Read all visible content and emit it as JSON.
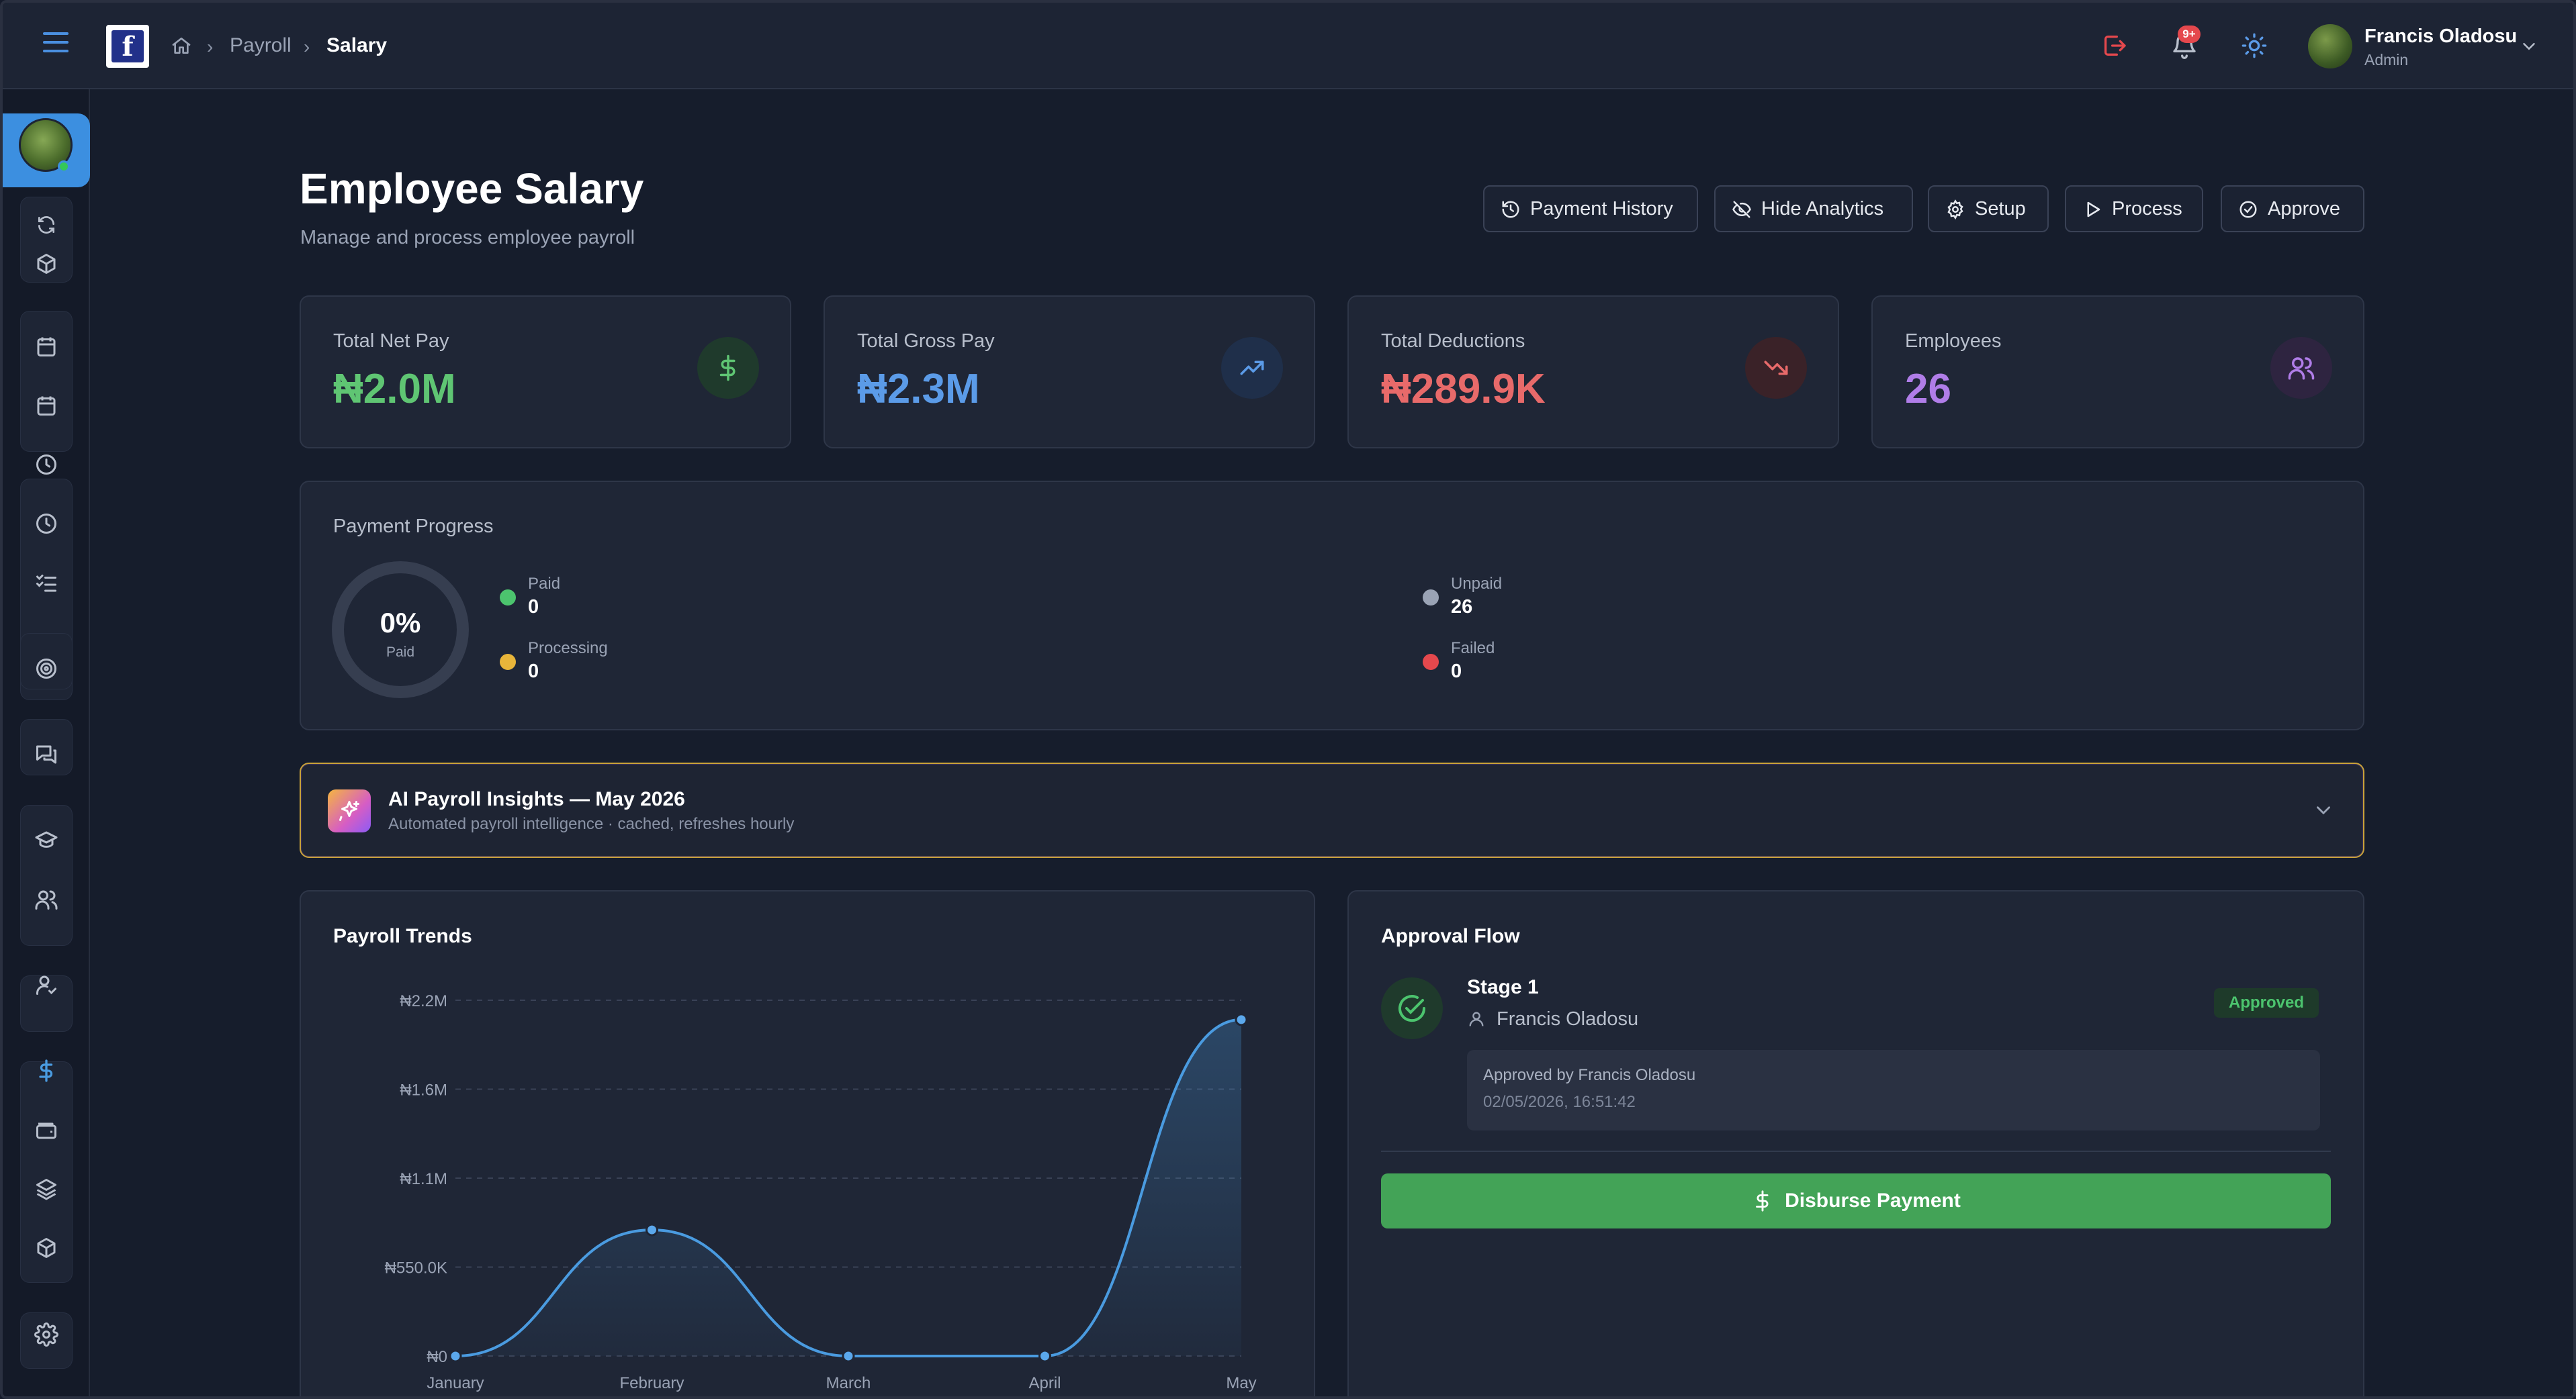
{
  "topbar": {
    "logo_letter": "f",
    "breadcrumb": [
      "Payroll",
      "Salary"
    ],
    "notification_badge": "9+",
    "user": {
      "name": "Francis Oladosu",
      "role": "Admin"
    }
  },
  "page": {
    "title": "Employee Salary",
    "subtitle": "Manage and process employee payroll"
  },
  "actions": {
    "payment_history": "Payment History",
    "hide_analytics": "Hide Analytics",
    "setup": "Setup",
    "process": "Process",
    "approve": "Approve"
  },
  "stats": [
    {
      "label": "Total Net Pay",
      "value": "₦2.0M",
      "color": "#5fc573",
      "icon": "dollar-icon"
    },
    {
      "label": "Total Gross Pay",
      "value": "₦2.3M",
      "color": "#5b9be8",
      "icon": "trending-up-icon"
    },
    {
      "label": "Total Deductions",
      "value": "₦289.9K",
      "color": "#e86a6a",
      "icon": "trending-down-icon"
    },
    {
      "label": "Employees",
      "value": "26",
      "color": "#b07de8",
      "icon": "users-icon"
    }
  ],
  "progress": {
    "title": "Payment Progress",
    "percent": "0%",
    "percent_label": "Paid",
    "legend": [
      {
        "name": "Paid",
        "value": "0",
        "color": "#4cc46e"
      },
      {
        "name": "Processing",
        "value": "0",
        "color": "#e8b53a"
      },
      {
        "name": "Unpaid",
        "value": "26",
        "color": "#9aa3b5"
      },
      {
        "name": "Failed",
        "value": "0",
        "color": "#e5484d"
      }
    ]
  },
  "ai": {
    "title": "AI Payroll Insights — May 2026",
    "subtitle": "Automated payroll intelligence · cached, refreshes hourly"
  },
  "chart_data": {
    "type": "area",
    "title": "Payroll Trends",
    "categories": [
      "January",
      "February",
      "March",
      "April",
      "May"
    ],
    "values": [
      0,
      780000,
      0,
      0,
      2080000
    ],
    "ylim": [
      0,
      2200000
    ],
    "yticks": [
      "₦0",
      "₦550.0K",
      "₦1.1M",
      "₦1.6M",
      "₦2.2M"
    ],
    "grid": true,
    "color": "#4a9be0"
  },
  "approval": {
    "title": "Approval Flow",
    "stage": "Stage 1",
    "approver": "Francis Oladosu",
    "status": "Approved",
    "approved_by": "Approved by Francis Oladosu",
    "approved_at": "02/05/2026, 16:51:42",
    "disburse_label": "Disburse Payment"
  }
}
